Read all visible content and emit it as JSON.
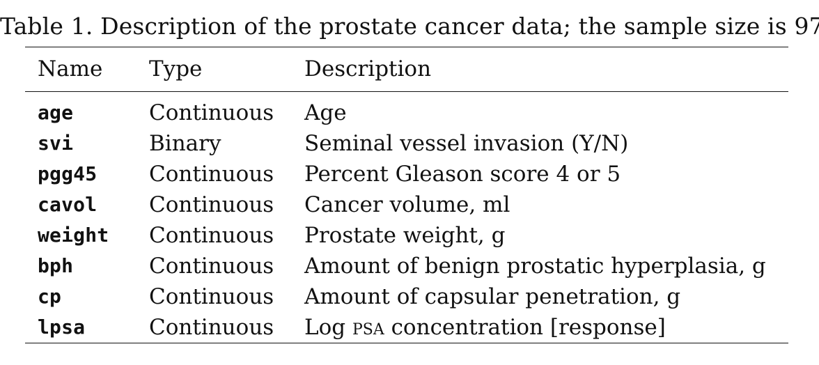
{
  "caption": "Table 1. Description of the prostate cancer data; the sample size is 97",
  "header": {
    "name": "Name",
    "type": "Type",
    "description": "Description"
  },
  "rows": [
    {
      "name": "age",
      "type": "Continuous",
      "description": "Age"
    },
    {
      "name": "svi",
      "type": "Binary",
      "description": "Seminal vessel invasion (Y/N)"
    },
    {
      "name": "pgg45",
      "type": "Continuous",
      "description": "Percent Gleason score 4 or 5"
    },
    {
      "name": "cavol",
      "type": "Continuous",
      "description": "Cancer volume, ml"
    },
    {
      "name": "weight",
      "type": "Continuous",
      "description": "Prostate weight, g"
    },
    {
      "name": "bph",
      "type": "Continuous",
      "description": "Amount of benign prostatic hyperplasia, g"
    },
    {
      "name": "cp",
      "type": "Continuous",
      "description": "Amount of capsular penetration, g"
    },
    {
      "name": "lpsa",
      "type": "Continuous",
      "description": "Log PSA concentration [response]"
    }
  ]
}
